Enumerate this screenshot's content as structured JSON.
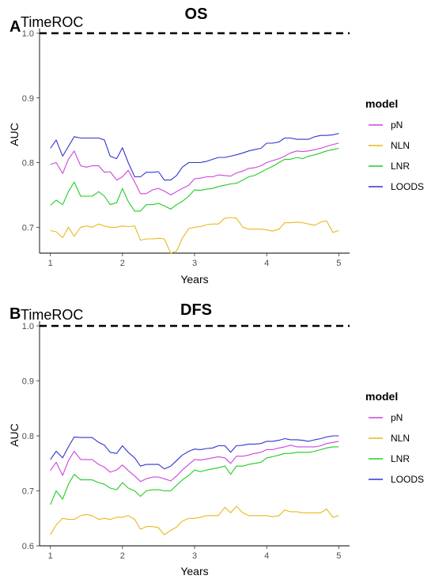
{
  "colors": {
    "pN": "#cc44dd",
    "NLN": "#e8b820",
    "LNR": "#22cc22",
    "LOODS": "#3333cc",
    "reference": "#000000"
  },
  "chart_data": [
    {
      "type": "line",
      "panel": "A",
      "subtitle": "TimeROC",
      "title": "OS",
      "xlabel": "Years",
      "ylabel": "AUC",
      "xlim": [
        0.85,
        5.15
      ],
      "ylim": [
        0.66,
        1.0
      ],
      "xticks": [
        "1",
        "2",
        "3",
        "4",
        "5"
      ],
      "yticks": [
        "0.7",
        "0.8",
        "0.9",
        "1.0"
      ],
      "xtick_values": [
        1,
        2,
        3,
        4,
        5
      ],
      "ytick_values": [
        0.7,
        0.8,
        0.9,
        1.0
      ],
      "reference_line": 1.0,
      "legend_title": "model",
      "legend_position": "right",
      "x": [
        1.0,
        1.08,
        1.17,
        1.25,
        1.33,
        1.42,
        1.5,
        1.58,
        1.67,
        1.75,
        1.83,
        1.92,
        2.0,
        2.08,
        2.17,
        2.25,
        2.33,
        2.42,
        2.5,
        2.58,
        2.67,
        2.75,
        2.83,
        2.92,
        3.0,
        3.08,
        3.17,
        3.25,
        3.33,
        3.42,
        3.5,
        3.58,
        3.67,
        3.75,
        3.83,
        3.92,
        4.0,
        4.08,
        4.17,
        4.25,
        4.33,
        4.42,
        4.5,
        4.58,
        4.67,
        4.75,
        4.83,
        4.92,
        5.0
      ],
      "series": [
        {
          "name": "pN",
          "color_key": "pN",
          "values": [
            0.797,
            0.8,
            0.783,
            0.805,
            0.818,
            0.795,
            0.793,
            0.795,
            0.795,
            0.785,
            0.786,
            0.773,
            0.778,
            0.788,
            0.77,
            0.752,
            0.752,
            0.758,
            0.76,
            0.756,
            0.75,
            0.755,
            0.76,
            0.765,
            0.775,
            0.776,
            0.778,
            0.778,
            0.781,
            0.78,
            0.779,
            0.784,
            0.787,
            0.791,
            0.792,
            0.795,
            0.8,
            0.803,
            0.806,
            0.81,
            0.815,
            0.818,
            0.817,
            0.818,
            0.82,
            0.822,
            0.825,
            0.828,
            0.83
          ]
        },
        {
          "name": "NLN",
          "color_key": "NLN",
          "values": [
            0.695,
            0.693,
            0.684,
            0.7,
            0.686,
            0.7,
            0.702,
            0.7,
            0.705,
            0.702,
            0.7,
            0.7,
            0.702,
            0.701,
            0.702,
            0.68,
            0.682,
            0.682,
            0.683,
            0.682,
            0.66,
            0.663,
            0.683,
            0.698,
            0.7,
            0.701,
            0.704,
            0.705,
            0.705,
            0.714,
            0.715,
            0.714,
            0.7,
            0.697,
            0.697,
            0.697,
            0.696,
            0.694,
            0.697,
            0.707,
            0.707,
            0.708,
            0.707,
            0.705,
            0.703,
            0.708,
            0.71,
            0.692,
            0.695
          ]
        },
        {
          "name": "LNR",
          "color_key": "LNR",
          "values": [
            0.734,
            0.742,
            0.735,
            0.755,
            0.77,
            0.748,
            0.748,
            0.748,
            0.755,
            0.748,
            0.735,
            0.738,
            0.76,
            0.74,
            0.725,
            0.725,
            0.735,
            0.735,
            0.737,
            0.733,
            0.728,
            0.735,
            0.74,
            0.748,
            0.758,
            0.757,
            0.759,
            0.76,
            0.763,
            0.765,
            0.767,
            0.768,
            0.773,
            0.778,
            0.78,
            0.785,
            0.79,
            0.794,
            0.8,
            0.805,
            0.805,
            0.808,
            0.806,
            0.81,
            0.812,
            0.815,
            0.818,
            0.82,
            0.822
          ]
        },
        {
          "name": "LOODS",
          "color_key": "LOODS",
          "values": [
            0.822,
            0.835,
            0.81,
            0.825,
            0.84,
            0.838,
            0.838,
            0.838,
            0.838,
            0.835,
            0.81,
            0.806,
            0.823,
            0.8,
            0.778,
            0.778,
            0.785,
            0.785,
            0.786,
            0.773,
            0.773,
            0.78,
            0.793,
            0.8,
            0.8,
            0.8,
            0.802,
            0.805,
            0.808,
            0.808,
            0.81,
            0.812,
            0.815,
            0.818,
            0.82,
            0.822,
            0.83,
            0.83,
            0.832,
            0.838,
            0.838,
            0.836,
            0.836,
            0.836,
            0.84,
            0.842,
            0.842,
            0.843,
            0.845
          ]
        }
      ]
    },
    {
      "type": "line",
      "panel": "B",
      "subtitle": "TimeROC",
      "title": "DFS",
      "xlabel": "Years",
      "ylabel": "AUC",
      "xlim": [
        0.85,
        5.15
      ],
      "ylim": [
        0.6,
        1.0
      ],
      "xticks": [
        "1",
        "2",
        "3",
        "4",
        "5"
      ],
      "yticks": [
        "0.6",
        "0.7",
        "0.8",
        "0.9",
        "1.0"
      ],
      "xtick_values": [
        1,
        2,
        3,
        4,
        5
      ],
      "ytick_values": [
        0.6,
        0.7,
        0.8,
        0.9,
        1.0
      ],
      "reference_line": 1.0,
      "legend_title": "model",
      "legend_position": "right",
      "x": [
        1.0,
        1.08,
        1.17,
        1.25,
        1.33,
        1.42,
        1.5,
        1.58,
        1.67,
        1.75,
        1.83,
        1.92,
        2.0,
        2.08,
        2.17,
        2.25,
        2.33,
        2.42,
        2.5,
        2.58,
        2.67,
        2.75,
        2.83,
        2.92,
        3.0,
        3.08,
        3.17,
        3.25,
        3.33,
        3.42,
        3.5,
        3.58,
        3.67,
        3.75,
        3.83,
        3.92,
        4.0,
        4.08,
        4.17,
        4.25,
        4.33,
        4.42,
        4.5,
        4.58,
        4.67,
        4.75,
        4.83,
        4.92,
        5.0
      ],
      "series": [
        {
          "name": "pN",
          "color_key": "pN",
          "values": [
            0.737,
            0.752,
            0.728,
            0.755,
            0.772,
            0.757,
            0.757,
            0.757,
            0.748,
            0.743,
            0.734,
            0.738,
            0.747,
            0.737,
            0.727,
            0.717,
            0.722,
            0.725,
            0.725,
            0.722,
            0.718,
            0.727,
            0.738,
            0.748,
            0.757,
            0.756,
            0.758,
            0.76,
            0.762,
            0.76,
            0.75,
            0.763,
            0.763,
            0.765,
            0.768,
            0.77,
            0.775,
            0.775,
            0.778,
            0.78,
            0.783,
            0.78,
            0.78,
            0.78,
            0.78,
            0.782,
            0.786,
            0.788,
            0.79
          ]
        },
        {
          "name": "NLN",
          "color_key": "NLN",
          "values": [
            0.62,
            0.638,
            0.65,
            0.648,
            0.648,
            0.655,
            0.657,
            0.655,
            0.648,
            0.65,
            0.648,
            0.652,
            0.652,
            0.655,
            0.648,
            0.63,
            0.635,
            0.635,
            0.633,
            0.62,
            0.628,
            0.634,
            0.645,
            0.65,
            0.65,
            0.652,
            0.655,
            0.655,
            0.655,
            0.67,
            0.66,
            0.672,
            0.66,
            0.655,
            0.655,
            0.655,
            0.655,
            0.653,
            0.655,
            0.665,
            0.662,
            0.662,
            0.66,
            0.66,
            0.66,
            0.66,
            0.667,
            0.652,
            0.655
          ]
        },
        {
          "name": "LNR",
          "color_key": "LNR",
          "values": [
            0.675,
            0.7,
            0.685,
            0.712,
            0.73,
            0.72,
            0.72,
            0.72,
            0.715,
            0.712,
            0.705,
            0.702,
            0.715,
            0.705,
            0.7,
            0.69,
            0.7,
            0.702,
            0.702,
            0.7,
            0.7,
            0.71,
            0.72,
            0.728,
            0.738,
            0.735,
            0.738,
            0.74,
            0.742,
            0.745,
            0.73,
            0.745,
            0.745,
            0.748,
            0.75,
            0.752,
            0.76,
            0.762,
            0.765,
            0.768,
            0.768,
            0.77,
            0.77,
            0.77,
            0.772,
            0.775,
            0.778,
            0.78,
            0.78
          ]
        },
        {
          "name": "LOODS",
          "color_key": "LOODS",
          "values": [
            0.757,
            0.772,
            0.76,
            0.78,
            0.798,
            0.797,
            0.797,
            0.797,
            0.788,
            0.783,
            0.77,
            0.768,
            0.782,
            0.77,
            0.76,
            0.745,
            0.748,
            0.748,
            0.748,
            0.74,
            0.745,
            0.755,
            0.765,
            0.772,
            0.776,
            0.775,
            0.777,
            0.778,
            0.782,
            0.782,
            0.77,
            0.782,
            0.783,
            0.785,
            0.785,
            0.786,
            0.79,
            0.79,
            0.792,
            0.795,
            0.793,
            0.793,
            0.792,
            0.79,
            0.793,
            0.795,
            0.798,
            0.8,
            0.8
          ]
        }
      ]
    }
  ]
}
